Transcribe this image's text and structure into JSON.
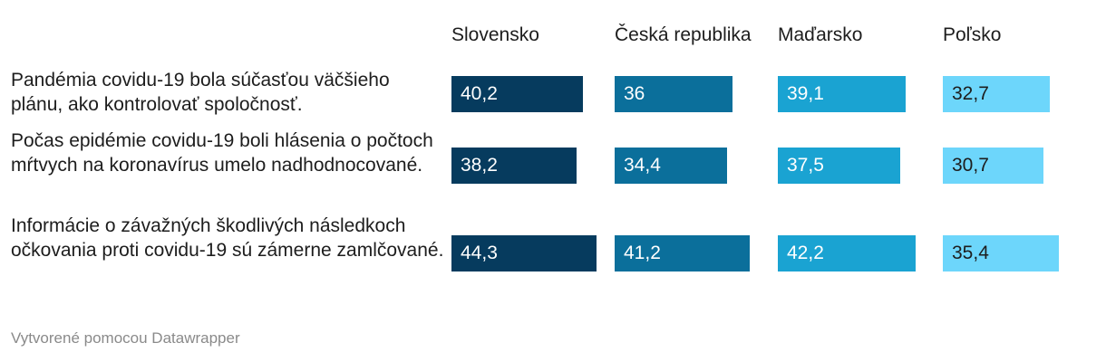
{
  "chart_data": {
    "type": "bar",
    "orientation": "horizontal",
    "layout": "small-multiples-columns",
    "columns": [
      {
        "name": "Slovensko",
        "color": "#063b5e",
        "text_color": "#ffffff"
      },
      {
        "name": "Česká republika",
        "color": "#0b6f9b",
        "text_color": "#ffffff"
      },
      {
        "name": "Maďarsko",
        "color": "#1aa3d2",
        "text_color": "#ffffff"
      },
      {
        "name": "Poľsko",
        "color": "#6dd6fb",
        "text_color": "#1d1d1d"
      }
    ],
    "rows": [
      {
        "label": "Pandémia covidu-19 bola súčasťou väčšieho plánu, ako kontrolovať spoločnosť.",
        "values": [
          40.2,
          36,
          39.1,
          32.7
        ],
        "value_labels": [
          "40,2",
          "36",
          "39,1",
          "32,7"
        ]
      },
      {
        "label": "Počas epidémie covidu-19 boli hlásenia o počtoch mŕtvych na koronavírus umelo nadhodnocované.",
        "values": [
          38.2,
          34.4,
          37.5,
          30.7
        ],
        "value_labels": [
          "38,2",
          "34,4",
          "37,5",
          "30,7"
        ]
      },
      {
        "label": "Informácie o závažných škodlivých následkoch očkovania proti covidu-19 sú zámerne zamlčované.",
        "values": [
          44.3,
          41.2,
          42.2,
          35.4
        ],
        "value_labels": [
          "44,3",
          "41,2",
          "42,2",
          "35,4"
        ]
      }
    ],
    "xlim": [
      0,
      44.3
    ],
    "footer": "Vytvorené pomocou Datawrapper"
  }
}
